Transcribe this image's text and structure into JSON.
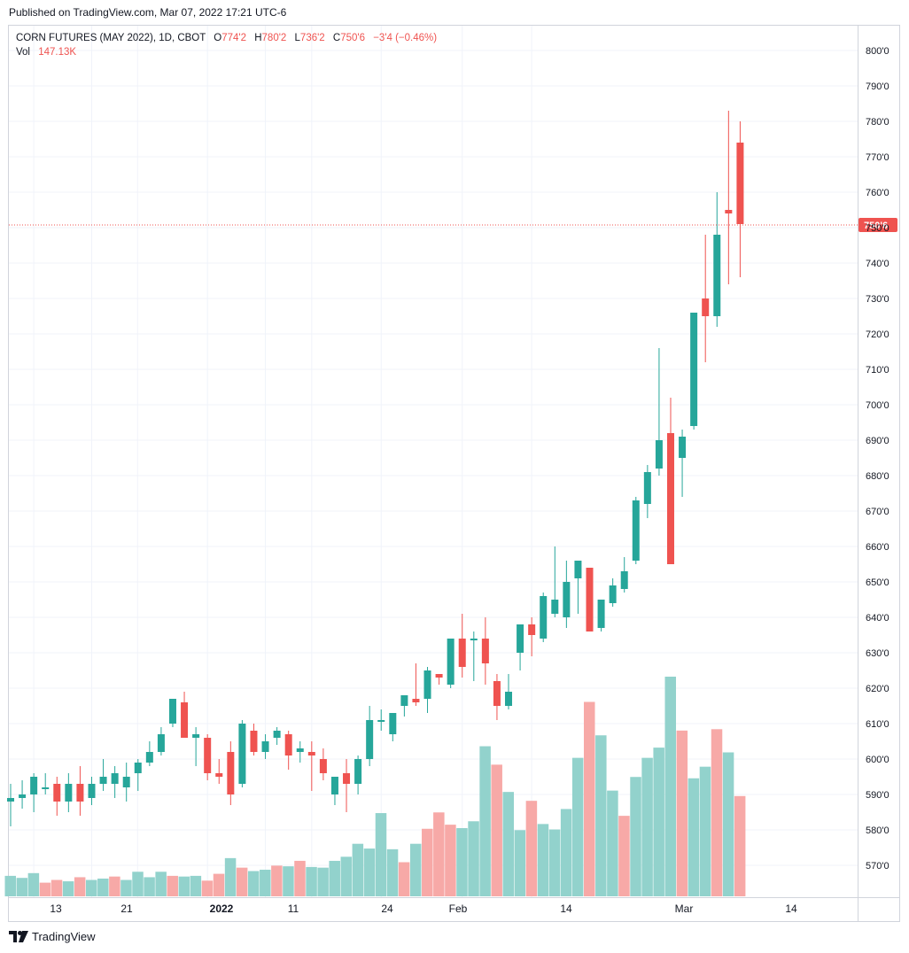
{
  "header": {
    "published": "Published on TradingView.com, Mar 07, 2022 17:21 UTC-6"
  },
  "legend": {
    "symbol": "CORN FUTURES (MAY 2022), 1D, CBOT",
    "open_label": "O",
    "open": "774'2",
    "high_label": "H",
    "high": "780'2",
    "low_label": "L",
    "low": "736'2",
    "close_label": "C",
    "close": "750'6",
    "change": "−3'4 (−0.46%)",
    "vol_label": "Vol",
    "vol": "147.13K"
  },
  "footer": {
    "brand": "TradingView"
  },
  "colors": {
    "up": "#26a69a",
    "down": "#ef5350",
    "up_vol": "#92d2cc",
    "down_vol": "#f7a9a7",
    "grid": "#f0f3fa"
  },
  "chart_data": {
    "type": "candlestick",
    "y_ticks": [
      "800'0",
      "790'0",
      "780'0",
      "770'0",
      "760'0",
      "750'0",
      "740'0",
      "730'0",
      "720'0",
      "710'0",
      "700'0",
      "690'0",
      "680'0",
      "670'0",
      "660'0",
      "650'0",
      "640'0",
      "630'0",
      "620'0",
      "610'0",
      "600'0",
      "590'0",
      "580'0",
      "570'0"
    ],
    "y_tick_values": [
      800,
      790,
      780,
      770,
      760,
      750,
      740,
      730,
      720,
      710,
      700,
      690,
      680,
      670,
      660,
      650,
      640,
      630,
      620,
      610,
      600,
      590,
      580,
      570
    ],
    "ylim": [
      563,
      805
    ],
    "x_ticks": [
      {
        "label": "13",
        "index": 2
      },
      {
        "label": "21",
        "index": 7
      },
      {
        "label": "2022",
        "index": 11,
        "bold": true
      },
      {
        "label": "11",
        "index": 17
      },
      {
        "label": "24",
        "index": 22
      },
      {
        "label": "Feb",
        "index": 26
      },
      {
        "label": "14",
        "index": 32
      },
      {
        "label": "Mar",
        "index": 39
      },
      {
        "label": "14",
        "index": 45
      }
    ],
    "last_price": 750.75,
    "last_price_label": "750'6",
    "candles": [
      {
        "o": 588,
        "h": 593,
        "l": 581,
        "c": 589
      },
      {
        "o": 589,
        "h": 594,
        "l": 586,
        "c": 590
      },
      {
        "o": 590,
        "h": 596,
        "l": 585,
        "c": 595
      },
      {
        "o": 592,
        "h": 596,
        "l": 590,
        "c": 592
      },
      {
        "o": 593,
        "h": 595,
        "l": 584,
        "c": 588
      },
      {
        "o": 588,
        "h": 596,
        "l": 585,
        "c": 593
      },
      {
        "o": 593,
        "h": 598,
        "l": 584,
        "c": 588
      },
      {
        "o": 589,
        "h": 595,
        "l": 587,
        "c": 593
      },
      {
        "o": 593,
        "h": 600,
        "l": 591,
        "c": 595
      },
      {
        "o": 593,
        "h": 598,
        "l": 589,
        "c": 596
      },
      {
        "o": 592,
        "h": 599,
        "l": 588,
        "c": 595
      },
      {
        "o": 596,
        "h": 600,
        "l": 591,
        "c": 599
      },
      {
        "o": 599,
        "h": 605,
        "l": 598,
        "c": 602
      },
      {
        "o": 602,
        "h": 609,
        "l": 601,
        "c": 607
      },
      {
        "o": 610,
        "h": 617,
        "l": 609,
        "c": 617
      },
      {
        "o": 616,
        "h": 619,
        "l": 606,
        "c": 606
      },
      {
        "o": 606,
        "h": 609,
        "l": 598,
        "c": 607
      },
      {
        "o": 606,
        "h": 607,
        "l": 594,
        "c": 596
      },
      {
        "o": 596,
        "h": 600,
        "l": 593,
        "c": 595
      },
      {
        "o": 602,
        "h": 605,
        "l": 587,
        "c": 590
      },
      {
        "o": 593,
        "h": 611,
        "l": 592,
        "c": 610
      },
      {
        "o": 608,
        "h": 610,
        "l": 601,
        "c": 602
      },
      {
        "o": 602,
        "h": 607,
        "l": 600,
        "c": 605
      },
      {
        "o": 606,
        "h": 609,
        "l": 604,
        "c": 608
      },
      {
        "o": 607,
        "h": 608,
        "l": 597,
        "c": 601
      },
      {
        "o": 602,
        "h": 605,
        "l": 599,
        "c": 603
      },
      {
        "o": 602,
        "h": 605,
        "l": 591,
        "c": 601
      },
      {
        "o": 600,
        "h": 603,
        "l": 594,
        "c": 596
      },
      {
        "o": 590,
        "h": 593,
        "l": 587,
        "c": 595
      },
      {
        "o": 596,
        "h": 600,
        "l": 585,
        "c": 593
      },
      {
        "o": 593,
        "h": 601,
        "l": 590,
        "c": 600
      },
      {
        "o": 600,
        "h": 615,
        "l": 598,
        "c": 611
      },
      {
        "o": 611,
        "h": 614,
        "l": 608,
        "c": 611
      },
      {
        "o": 607,
        "h": 613,
        "l": 605,
        "c": 613
      },
      {
        "o": 615,
        "h": 618,
        "l": 612,
        "c": 618
      },
      {
        "o": 617,
        "h": 627,
        "l": 615,
        "c": 616
      },
      {
        "o": 617,
        "h": 626,
        "l": 613,
        "c": 625
      },
      {
        "o": 624,
        "h": 624,
        "l": 621,
        "c": 623
      },
      {
        "o": 621,
        "h": 634,
        "l": 620,
        "c": 634
      },
      {
        "o": 634,
        "h": 641,
        "l": 623,
        "c": 626
      },
      {
        "o": 634,
        "h": 636,
        "l": 622,
        "c": 634
      },
      {
        "o": 634,
        "h": 640,
        "l": 621,
        "c": 627
      },
      {
        "o": 622,
        "h": 624,
        "l": 611,
        "c": 615
      },
      {
        "o": 615,
        "h": 624,
        "l": 614,
        "c": 619
      },
      {
        "o": 630,
        "h": 638,
        "l": 625,
        "c": 638
      },
      {
        "o": 638,
        "h": 640,
        "l": 629,
        "c": 635
      },
      {
        "o": 634,
        "h": 647,
        "l": 633,
        "c": 646
      },
      {
        "o": 641,
        "h": 660,
        "l": 640,
        "c": 645
      },
      {
        "o": 640,
        "h": 656,
        "l": 637,
        "c": 650
      },
      {
        "o": 651,
        "h": 656,
        "l": 641,
        "c": 656
      },
      {
        "o": 654,
        "h": 654,
        "l": 636,
        "c": 636
      },
      {
        "o": 637,
        "h": 645,
        "l": 636,
        "c": 645
      },
      {
        "o": 644,
        "h": 651,
        "l": 643,
        "c": 649
      },
      {
        "o": 648,
        "h": 657,
        "l": 647,
        "c": 653
      },
      {
        "o": 656,
        "h": 674,
        "l": 655,
        "c": 673
      },
      {
        "o": 672,
        "h": 683,
        "l": 668,
        "c": 681
      },
      {
        "o": 682,
        "h": 716,
        "l": 680,
        "c": 690
      },
      {
        "o": 692,
        "h": 702,
        "l": 655,
        "c": 655
      },
      {
        "o": 685,
        "h": 693,
        "l": 674,
        "c": 691
      },
      {
        "o": 694,
        "h": 726,
        "l": 693,
        "c": 726
      },
      {
        "o": 730,
        "h": 748,
        "l": 712,
        "c": 725
      },
      {
        "o": 725,
        "h": 760,
        "l": 722,
        "c": 748
      },
      {
        "o": 755,
        "h": 783,
        "l": 734,
        "c": 754
      },
      {
        "o": 774,
        "h": 780,
        "l": 736,
        "c": 751
      }
    ],
    "volumes": [
      {
        "v": 30,
        "up": true
      },
      {
        "v": 27,
        "up": true
      },
      {
        "v": 34,
        "up": true
      },
      {
        "v": 20,
        "up": false
      },
      {
        "v": 24,
        "up": false
      },
      {
        "v": 22,
        "up": true
      },
      {
        "v": 28,
        "up": false
      },
      {
        "v": 24,
        "up": true
      },
      {
        "v": 26,
        "up": true
      },
      {
        "v": 29,
        "up": false
      },
      {
        "v": 24,
        "up": true
      },
      {
        "v": 36,
        "up": true
      },
      {
        "v": 28,
        "up": true
      },
      {
        "v": 36,
        "up": true
      },
      {
        "v": 30,
        "up": false
      },
      {
        "v": 29,
        "up": true
      },
      {
        "v": 30,
        "up": true
      },
      {
        "v": 23,
        "up": false
      },
      {
        "v": 33,
        "up": false
      },
      {
        "v": 56,
        "up": true
      },
      {
        "v": 42,
        "up": false
      },
      {
        "v": 37,
        "up": true
      },
      {
        "v": 39,
        "up": true
      },
      {
        "v": 45,
        "up": false
      },
      {
        "v": 44,
        "up": true
      },
      {
        "v": 52,
        "up": false
      },
      {
        "v": 43,
        "up": true
      },
      {
        "v": 42,
        "up": true
      },
      {
        "v": 52,
        "up": true
      },
      {
        "v": 58,
        "up": true
      },
      {
        "v": 77,
        "up": true
      },
      {
        "v": 70,
        "up": true
      },
      {
        "v": 122,
        "up": true
      },
      {
        "v": 69,
        "up": true
      },
      {
        "v": 50,
        "up": false
      },
      {
        "v": 77,
        "up": true
      },
      {
        "v": 99,
        "up": false
      },
      {
        "v": 123,
        "up": false
      },
      {
        "v": 105,
        "up": false
      },
      {
        "v": 100,
        "up": true
      },
      {
        "v": 110,
        "up": true
      },
      {
        "v": 220,
        "up": true
      },
      {
        "v": 193,
        "up": false
      },
      {
        "v": 153,
        "up": true
      },
      {
        "v": 97,
        "up": true
      },
      {
        "v": 140,
        "up": false
      },
      {
        "v": 106,
        "up": true
      },
      {
        "v": 98,
        "up": true
      },
      {
        "v": 128,
        "up": true
      },
      {
        "v": 203,
        "up": true
      },
      {
        "v": 285,
        "up": false
      },
      {
        "v": 236,
        "up": true
      },
      {
        "v": 155,
        "up": true
      },
      {
        "v": 118,
        "up": false
      },
      {
        "v": 175,
        "up": true
      },
      {
        "v": 203,
        "up": true
      },
      {
        "v": 218,
        "up": true
      },
      {
        "v": 322,
        "up": true
      },
      {
        "v": 243,
        "up": false
      },
      {
        "v": 173,
        "up": true
      },
      {
        "v": 190,
        "up": true
      },
      {
        "v": 245,
        "up": false
      },
      {
        "v": 211,
        "up": true
      },
      {
        "v": 147,
        "up": false
      }
    ]
  }
}
